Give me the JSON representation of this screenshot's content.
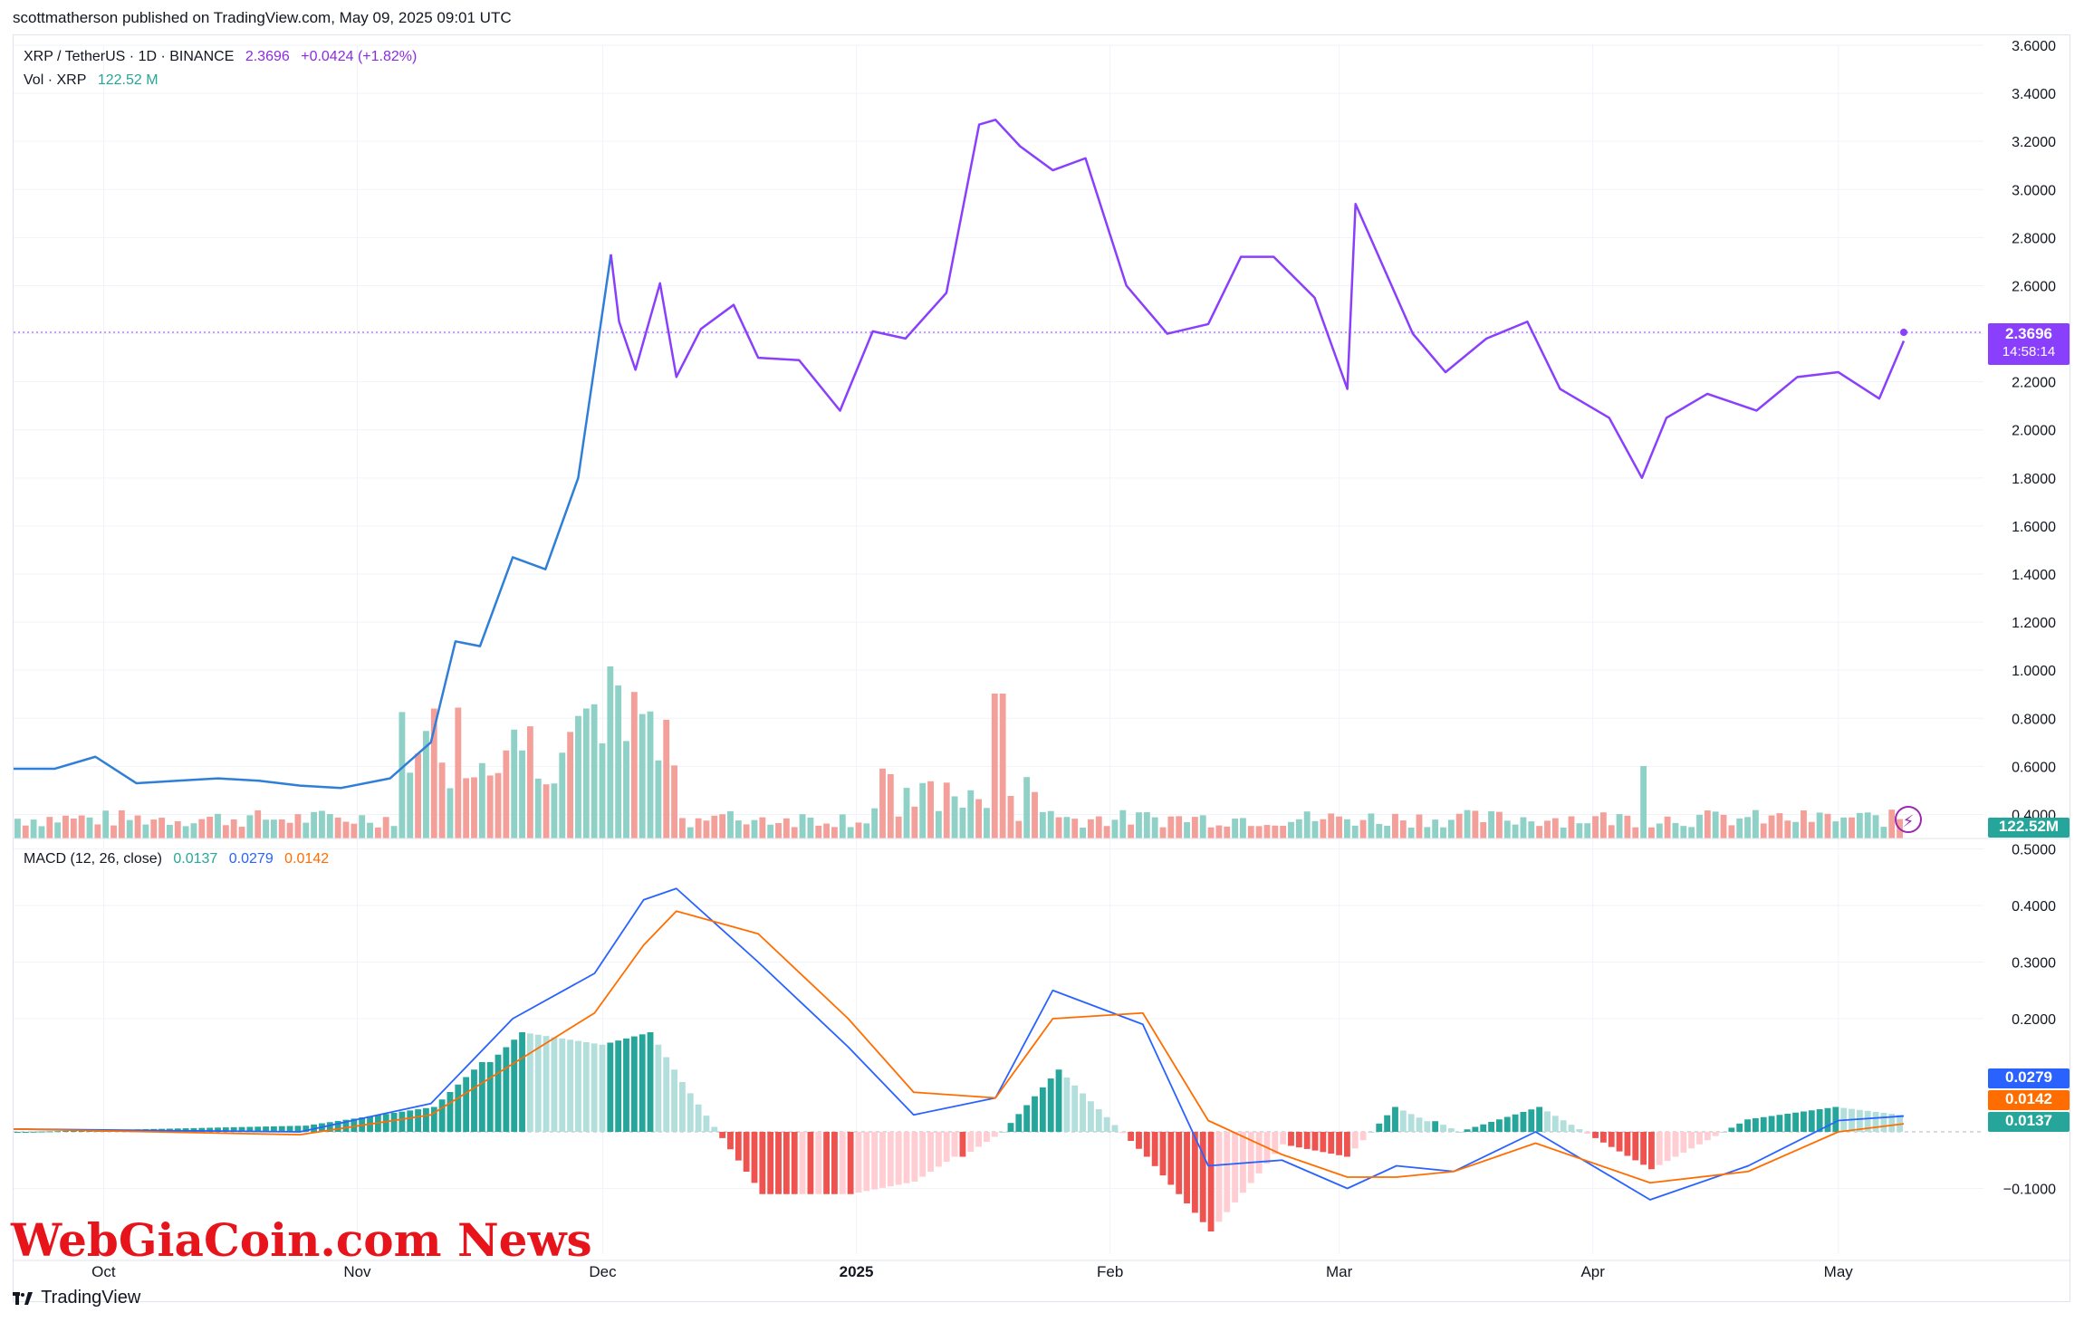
{
  "publish_line": "scottmatherson published on TradingView.com, May 09, 2025 09:01 UTC",
  "legend": {
    "symbol": "XRP / TetherUS · 1D · BINANCE",
    "price": "2.3696",
    "change": "+0.0424 (+1.82%)",
    "vol_label": "Vol · XRP",
    "vol_value": "122.52 M",
    "macd_label": "MACD (12, 26, close)",
    "macd_hist": "0.0137",
    "macd_line": "0.0279",
    "macd_signal": "0.0142"
  },
  "tags": {
    "price": "2.3696",
    "countdown": "14:58:14",
    "volume": "122.52M",
    "macd_line": "0.0279",
    "macd_signal": "0.0142",
    "macd_hist": "0.0137"
  },
  "watermark": "WebGiaCoin.com News",
  "brand": "TradingView",
  "colors": {
    "price_early": "#2f7fd8",
    "price_late": "#8a3ffc",
    "vol_up": "#8fd1c6",
    "vol_down": "#f3a09b",
    "macd_line": "#2962ff",
    "signal_line": "#ff6d00",
    "hist_up_strong": "#26a69a",
    "hist_up_weak": "#b2dfdb",
    "hist_down_strong": "#ef5350",
    "hist_down_weak": "#ffcdd2"
  },
  "chart_data": [
    {
      "type": "line",
      "name": "XRP / TetherUS · 1D · BINANCE",
      "x": [
        "2024-09-20",
        "2024-09-25",
        "2024-09-30",
        "2024-10-05",
        "2024-10-10",
        "2024-10-15",
        "2024-10-20",
        "2024-10-25",
        "2024-10-30",
        "2024-11-05",
        "2024-11-10",
        "2024-11-13",
        "2024-11-16",
        "2024-11-20",
        "2024-11-24",
        "2024-11-28",
        "2024-12-02",
        "2024-12-03",
        "2024-12-05",
        "2024-12-08",
        "2024-12-10",
        "2024-12-13",
        "2024-12-17",
        "2024-12-20",
        "2024-12-25",
        "2024-12-30",
        "2025-01-03",
        "2025-01-07",
        "2025-01-12",
        "2025-01-16",
        "2025-01-18",
        "2025-01-21",
        "2025-01-25",
        "2025-01-29",
        "2025-02-03",
        "2025-02-08",
        "2025-02-13",
        "2025-02-17",
        "2025-02-21",
        "2025-02-26",
        "2025-03-02",
        "2025-03-03",
        "2025-03-10",
        "2025-03-14",
        "2025-03-19",
        "2025-03-24",
        "2025-03-28",
        "2025-04-03",
        "2025-04-07",
        "2025-04-10",
        "2025-04-15",
        "2025-04-21",
        "2025-04-26",
        "2025-05-01",
        "2025-05-06",
        "2025-05-09"
      ],
      "y": [
        0.59,
        0.59,
        0.64,
        0.53,
        0.54,
        0.55,
        0.54,
        0.52,
        0.51,
        0.55,
        0.7,
        1.12,
        1.1,
        1.47,
        1.42,
        1.8,
        2.73,
        2.45,
        2.25,
        2.61,
        2.22,
        2.42,
        2.52,
        2.3,
        2.29,
        2.08,
        2.41,
        2.38,
        2.57,
        3.27,
        3.29,
        3.18,
        3.08,
        3.13,
        2.6,
        2.4,
        2.44,
        2.72,
        2.72,
        2.55,
        2.17,
        2.94,
        2.4,
        2.24,
        2.38,
        2.45,
        2.17,
        2.05,
        1.8,
        2.05,
        2.15,
        2.08,
        2.22,
        2.24,
        2.13,
        2.37
      ],
      "ylim": [
        0.3,
        3.6
      ],
      "yticks": [
        "3.6000",
        "3.4000",
        "3.2000",
        "3.0000",
        "2.8000",
        "2.6000",
        "2.4000",
        "2.2000",
        "2.0000",
        "1.8000",
        "1.6000",
        "1.4000",
        "1.2000",
        "1.0000",
        "0.8000",
        "0.6000",
        "0.4000"
      ],
      "xticks": [
        "Oct",
        "Nov",
        "Dec",
        "2025",
        "Feb",
        "Mar",
        "Apr",
        "May"
      ],
      "last_value": 2.3696
    },
    {
      "type": "bar",
      "name": "Vol · XRP",
      "values": [
        0.05,
        0.2,
        0.25,
        0.1,
        0.3,
        0.6,
        0.7,
        1.0,
        0.4,
        1.2,
        0.7,
        0.3,
        1.1,
        0.6,
        0.3,
        0.5,
        0.4,
        0.2,
        0.35,
        0.3
      ],
      "last_value": "122.52M"
    },
    {
      "type": "line",
      "name": "MACD (12, 26, close)",
      "series": [
        {
          "name": "MACD",
          "x": [
            "2024-09-20",
            "2024-10-25",
            "2024-11-10",
            "2024-11-20",
            "2024-11-30",
            "2024-12-06",
            "2024-12-10",
            "2024-12-20",
            "2024-12-31",
            "2025-01-08",
            "2025-01-18",
            "2025-01-25",
            "2025-02-05",
            "2025-02-13",
            "2025-02-22",
            "2025-03-02",
            "2025-03-08",
            "2025-03-15",
            "2025-03-25",
            "2025-04-08",
            "2025-04-20",
            "2025-05-01",
            "2025-05-09"
          ],
          "values": [
            0.005,
            0.0,
            0.05,
            0.2,
            0.28,
            0.41,
            0.43,
            0.3,
            0.15,
            0.03,
            0.06,
            0.25,
            0.19,
            -0.06,
            -0.05,
            -0.1,
            -0.06,
            -0.07,
            0.0,
            -0.12,
            -0.06,
            0.02,
            0.0279
          ]
        },
        {
          "name": "Signal",
          "x": [
            "2024-09-20",
            "2024-10-25",
            "2024-11-10",
            "2024-11-20",
            "2024-11-30",
            "2024-12-06",
            "2024-12-10",
            "2024-12-20",
            "2024-12-31",
            "2025-01-08",
            "2025-01-18",
            "2025-01-25",
            "2025-02-05",
            "2025-02-13",
            "2025-02-22",
            "2025-03-02",
            "2025-03-08",
            "2025-03-15",
            "2025-03-25",
            "2025-04-08",
            "2025-04-20",
            "2025-05-01",
            "2025-05-09"
          ],
          "values": [
            0.005,
            -0.005,
            0.03,
            0.12,
            0.21,
            0.33,
            0.39,
            0.35,
            0.2,
            0.07,
            0.06,
            0.2,
            0.21,
            0.02,
            -0.04,
            -0.08,
            -0.08,
            -0.07,
            -0.02,
            -0.09,
            -0.07,
            0.0,
            0.0142
          ]
        }
      ],
      "histogram_last": 0.0137,
      "ylim": [
        -0.13,
        0.46
      ],
      "yticks": [
        "0.5000",
        "0.4000",
        "0.3000",
        "0.2000",
        "−0.1000"
      ]
    }
  ]
}
